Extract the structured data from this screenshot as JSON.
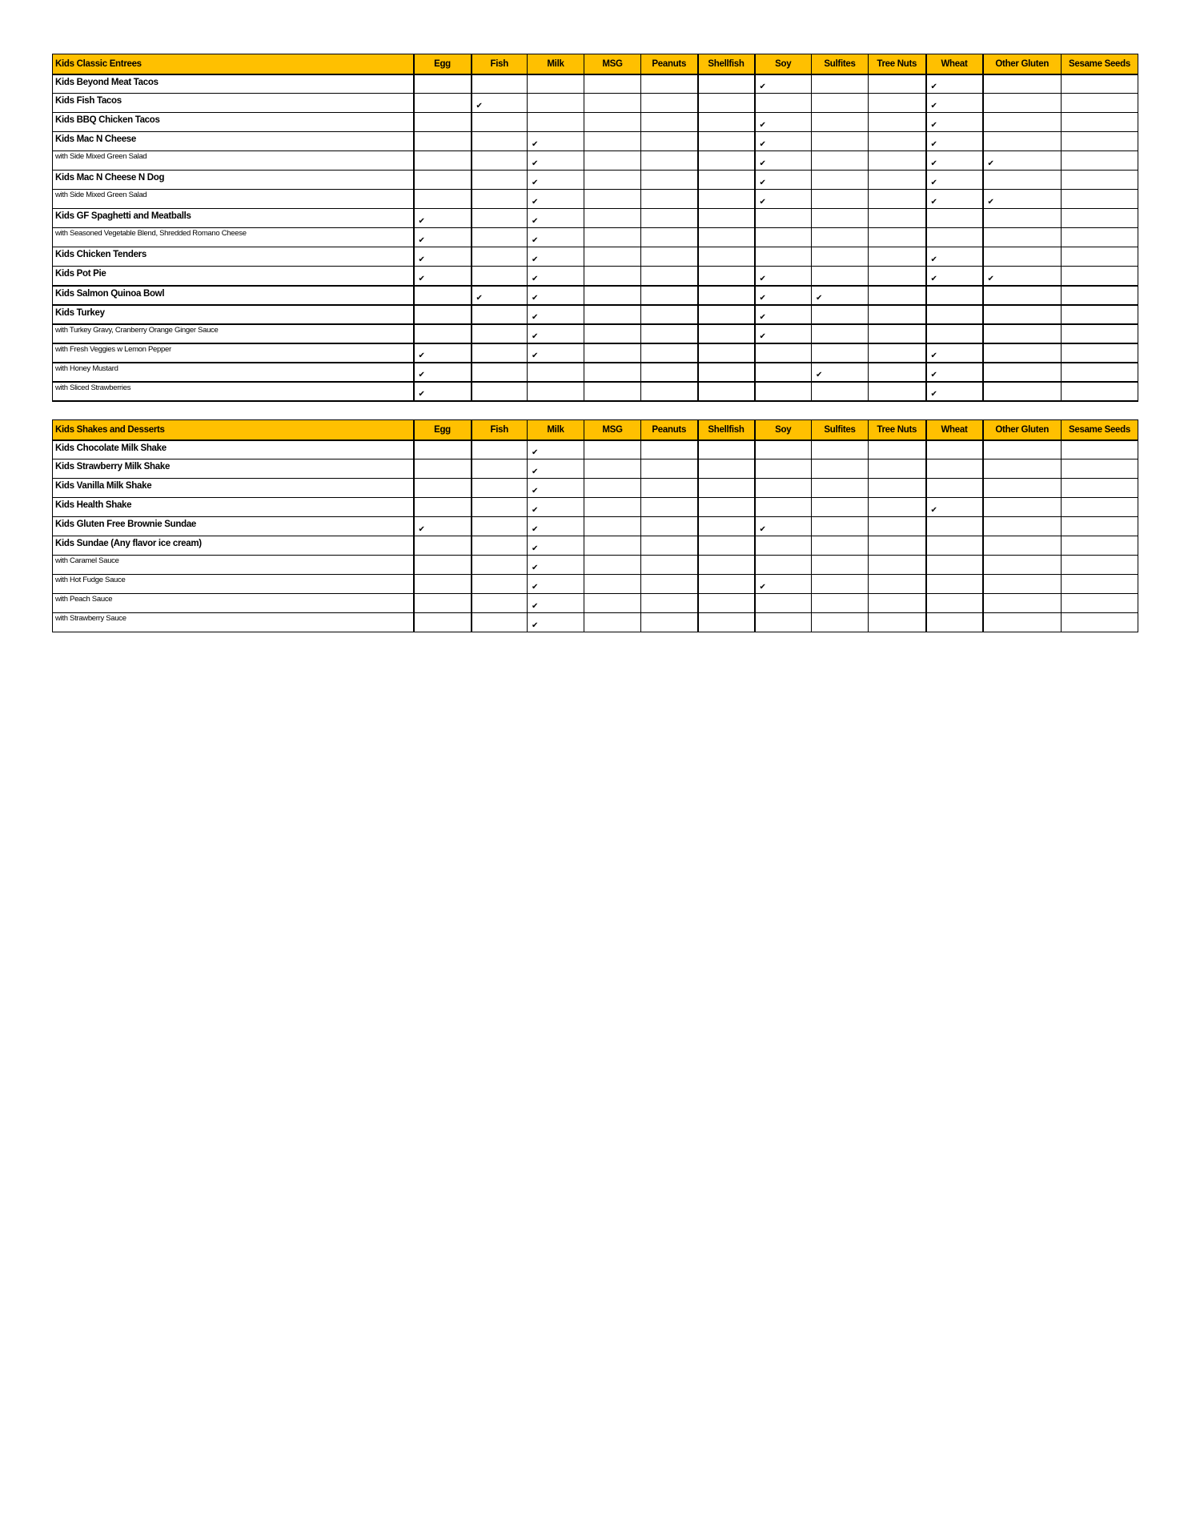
{
  "allergens": [
    "Egg",
    "Fish",
    "Milk",
    "MSG",
    "Peanuts",
    "Shellfish",
    "Soy",
    "Sulfites",
    "Tree Nuts",
    "Wheat",
    "Other Gluten",
    "Sesame Seeds"
  ],
  "check_icon": "check-mark-icon",
  "check_glyph": "✔",
  "header_color": "#FFC000",
  "tables": [
    {
      "title": "Kids Classic Entrees",
      "rows": [
        {
          "name": "Kids Beyond Meat Tacos",
          "type": "item",
          "contains": [
            "Soy",
            "Wheat"
          ]
        },
        {
          "name": "Kids Fish Tacos",
          "type": "item",
          "contains": [
            "Fish",
            "Wheat"
          ]
        },
        {
          "name": "Kids BBQ Chicken Tacos",
          "type": "item",
          "contains": [
            "Soy",
            "Wheat"
          ]
        },
        {
          "name": "Kids Mac N Cheese",
          "type": "item",
          "contains": [
            "Milk",
            "Soy",
            "Wheat"
          ]
        },
        {
          "name": "with Side Mixed Green Salad",
          "type": "option",
          "contains": [
            "Milk",
            "Soy",
            "Wheat",
            "Other Gluten"
          ]
        },
        {
          "name": "Kids Mac N Cheese N Dog",
          "type": "item",
          "contains": [
            "Milk",
            "Soy",
            "Wheat"
          ]
        },
        {
          "name": "with Side Mixed Green Salad",
          "type": "option",
          "contains": [
            "Milk",
            "Soy",
            "Wheat",
            "Other Gluten"
          ]
        },
        {
          "name": "Kids GF Spaghetti and Meatballs",
          "type": "item",
          "contains": [
            "Egg",
            "Milk"
          ]
        },
        {
          "name": "with Seasoned Vegetable Blend, Shredded Romano Cheese",
          "type": "option",
          "contains": [
            "Egg",
            "Milk"
          ]
        },
        {
          "name": "Kids Chicken Tenders",
          "type": "item",
          "contains": [
            "Egg",
            "Milk",
            "Wheat"
          ]
        },
        {
          "name": "Kids Pot Pie",
          "type": "item",
          "contains": [
            "Egg",
            "Milk",
            "Soy",
            "Wheat",
            "Other Gluten"
          ]
        },
        {
          "name": "Kids Salmon Quinoa Bowl",
          "type": "item",
          "contains": [
            "Fish",
            "Milk",
            "Soy",
            "Sulfites"
          ]
        },
        {
          "name": "Kids Turkey",
          "type": "item",
          "contains": [
            "Milk",
            "Soy"
          ]
        },
        {
          "name": "with Turkey Gravy, Cranberry Orange Ginger Sauce",
          "type": "option",
          "contains": [
            "Milk",
            "Soy"
          ]
        },
        {
          "name": "with Fresh Veggies w Lemon Pepper",
          "type": "option",
          "contains": [
            "Egg",
            "Milk",
            "Wheat"
          ]
        },
        {
          "name": "with Honey Mustard",
          "type": "option",
          "contains": [
            "Egg",
            "Sulfites",
            "Wheat"
          ]
        },
        {
          "name": "with Sliced Strawberries",
          "type": "option",
          "contains": [
            "Egg",
            "Wheat"
          ]
        }
      ]
    },
    {
      "title": "Kids Shakes and Desserts",
      "rows": [
        {
          "name": "Kids Chocolate Milk Shake",
          "type": "item",
          "contains": [
            "Milk"
          ]
        },
        {
          "name": "Kids Strawberry Milk Shake",
          "type": "item",
          "contains": [
            "Milk"
          ]
        },
        {
          "name": "Kids Vanilla Milk Shake",
          "type": "item",
          "contains": [
            "Milk"
          ]
        },
        {
          "name": "Kids Health Shake",
          "type": "item",
          "contains": [
            "Milk",
            "Wheat"
          ]
        },
        {
          "name": "Kids Gluten Free Brownie Sundae",
          "type": "item",
          "contains": [
            "Egg",
            "Milk",
            "Soy"
          ]
        },
        {
          "name": "Kids Sundae (Any flavor ice cream)",
          "type": "item",
          "contains": [
            "Milk"
          ]
        },
        {
          "name": "with Caramel Sauce",
          "type": "option",
          "contains": [
            "Milk"
          ]
        },
        {
          "name": "with Hot Fudge Sauce",
          "type": "option",
          "contains": [
            "Milk",
            "Soy"
          ]
        },
        {
          "name": "with Peach Sauce",
          "type": "option",
          "contains": [
            "Milk"
          ]
        },
        {
          "name": "with Strawberry Sauce",
          "type": "option",
          "contains": [
            "Milk"
          ]
        }
      ]
    }
  ]
}
